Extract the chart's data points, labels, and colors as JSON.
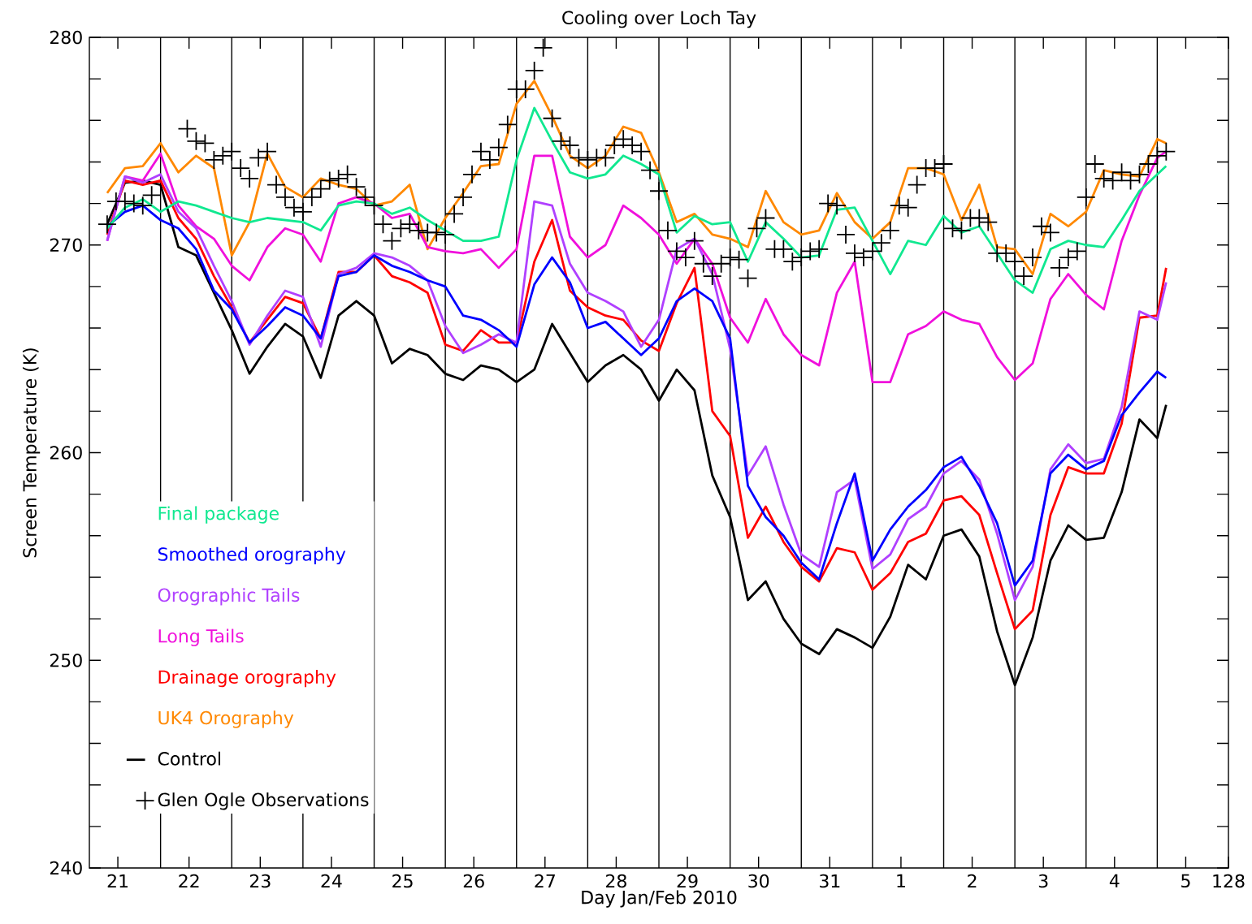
{
  "chart_data": {
    "type": "line",
    "title": "Cooling over Loch Tay",
    "xlabel": "Day Jan/Feb 2010",
    "ylabel": "Screen Temperature (K)",
    "xlim": [
      "2010-01-21T00:00",
      "2010-02-06T00:00"
    ],
    "ylim": [
      240,
      280
    ],
    "xticks": [
      {
        "value": "2010-01-21T09:36",
        "label": "21"
      },
      {
        "value": "2010-01-22T09:36",
        "label": "22"
      },
      {
        "value": "2010-01-23T09:36",
        "label": "23"
      },
      {
        "value": "2010-01-24T09:36",
        "label": "24"
      },
      {
        "value": "2010-01-25T09:36",
        "label": "25"
      },
      {
        "value": "2010-01-26T09:36",
        "label": "26"
      },
      {
        "value": "2010-01-27T09:36",
        "label": "27"
      },
      {
        "value": "2010-01-28T09:36",
        "label": "28"
      },
      {
        "value": "2010-01-29T09:36",
        "label": "29"
      },
      {
        "value": "2010-01-30T09:36",
        "label": "30"
      },
      {
        "value": "2010-01-31T09:36",
        "label": "31"
      },
      {
        "value": "2010-02-01T09:36",
        "label": "1"
      },
      {
        "value": "2010-02-02T09:36",
        "label": "2"
      },
      {
        "value": "2010-02-03T09:36",
        "label": "3"
      },
      {
        "value": "2010-02-04T09:36",
        "label": "4"
      },
      {
        "value": "2010-02-05T09:36",
        "label": "5"
      },
      {
        "value": "2010-02-06T00:00",
        "label": "128"
      }
    ],
    "yticks": [
      240,
      250,
      260,
      270,
      280
    ],
    "legend": "bottom left",
    "ref_lines": [
      {
        "axis": "x",
        "value": "2010-01-22T00:00",
        "color": "#000000"
      },
      {
        "axis": "x",
        "value": "2010-01-23T00:00",
        "color": "#000000"
      },
      {
        "axis": "x",
        "value": "2010-01-24T00:00",
        "color": "#000000"
      },
      {
        "axis": "x",
        "value": "2010-01-25T00:00",
        "color": "#000000"
      },
      {
        "axis": "x",
        "value": "2010-01-26T00:00",
        "color": "#000000"
      },
      {
        "axis": "x",
        "value": "2010-01-27T00:00",
        "color": "#000000"
      },
      {
        "axis": "x",
        "value": "2010-01-28T00:00",
        "color": "#000000"
      },
      {
        "axis": "x",
        "value": "2010-01-29T00:00",
        "color": "#000000"
      },
      {
        "axis": "x",
        "value": "2010-01-30T00:00",
        "color": "#000000"
      },
      {
        "axis": "x",
        "value": "2010-01-31T00:00",
        "color": "#000000"
      },
      {
        "axis": "x",
        "value": "2010-02-01T00:00",
        "color": "#000000"
      },
      {
        "axis": "x",
        "value": "2010-02-02T00:00",
        "color": "#000000"
      },
      {
        "axis": "x",
        "value": "2010-02-03T00:00",
        "color": "#000000"
      },
      {
        "axis": "x",
        "value": "2010-02-04T00:00",
        "color": "#000000"
      },
      {
        "axis": "x",
        "value": "2010-02-05T00:00",
        "color": "#000000"
      }
    ],
    "x": [
      "2010-01-21T06:00",
      "2010-01-21T12:00",
      "2010-01-21T18:00",
      "2010-01-22T00:00",
      "2010-01-22T06:00",
      "2010-01-22T12:00",
      "2010-01-22T18:00",
      "2010-01-23T00:00",
      "2010-01-23T06:00",
      "2010-01-23T12:00",
      "2010-01-23T18:00",
      "2010-01-24T00:00",
      "2010-01-24T06:00",
      "2010-01-24T12:00",
      "2010-01-24T18:00",
      "2010-01-25T00:00",
      "2010-01-25T06:00",
      "2010-01-25T12:00",
      "2010-01-25T18:00",
      "2010-01-26T00:00",
      "2010-01-26T06:00",
      "2010-01-26T12:00",
      "2010-01-26T18:00",
      "2010-01-27T00:00",
      "2010-01-27T06:00",
      "2010-01-27T12:00",
      "2010-01-27T18:00",
      "2010-01-28T00:00",
      "2010-01-28T06:00",
      "2010-01-28T12:00",
      "2010-01-28T18:00",
      "2010-01-29T00:00",
      "2010-01-29T06:00",
      "2010-01-29T12:00",
      "2010-01-29T18:00",
      "2010-01-30T00:00",
      "2010-01-30T06:00",
      "2010-01-30T12:00",
      "2010-01-30T18:00",
      "2010-01-31T00:00",
      "2010-01-31T06:00",
      "2010-01-31T12:00",
      "2010-01-31T18:00",
      "2010-02-01T00:00",
      "2010-02-01T06:00",
      "2010-02-01T12:00",
      "2010-02-01T18:00",
      "2010-02-02T00:00",
      "2010-02-02T06:00",
      "2010-02-02T12:00",
      "2010-02-02T18:00",
      "2010-02-03T00:00",
      "2010-02-03T06:00",
      "2010-02-03T12:00",
      "2010-02-03T18:00",
      "2010-02-04T00:00",
      "2010-02-04T06:00",
      "2010-02-04T12:00",
      "2010-02-04T18:00",
      "2010-02-05T00:00",
      "2010-02-05T03:00"
    ],
    "series": [
      {
        "name": "Final package",
        "color": "#10e890",
        "values": [
          270.8,
          271.8,
          272.2,
          271.6,
          272.1,
          271.9,
          271.6,
          271.3,
          271.1,
          271.3,
          271.2,
          271.1,
          270.7,
          271.9,
          272.1,
          272.0,
          271.5,
          271.8,
          271.2,
          270.7,
          270.2,
          270.2,
          270.4,
          274.1,
          276.6,
          275.0,
          273.5,
          273.2,
          273.4,
          274.3,
          273.9,
          273.4,
          270.6,
          271.4,
          271.0,
          271.1,
          269.2,
          271.1,
          270.3,
          269.4,
          269.5,
          271.7,
          271.8,
          270.2,
          268.6,
          270.2,
          270.0,
          271.4,
          270.6,
          270.9,
          269.6,
          268.3,
          267.7,
          269.8,
          270.2,
          270.0,
          269.9,
          271.2,
          272.6,
          273.4,
          273.8
        ]
      },
      {
        "name": "Smoothed orography",
        "color": "#0000ff",
        "values": [
          270.9,
          271.6,
          271.9,
          271.2,
          270.8,
          269.8,
          267.8,
          266.9,
          265.3,
          266.1,
          267.0,
          266.6,
          265.5,
          268.5,
          268.7,
          269.5,
          269.0,
          268.7,
          268.3,
          268.0,
          266.6,
          266.4,
          265.9,
          265.1,
          268.1,
          269.4,
          268.2,
          266.0,
          266.3,
          265.5,
          264.7,
          265.5,
          267.3,
          267.9,
          267.3,
          265.5,
          258.4,
          256.9,
          256.0,
          254.7,
          253.9,
          256.6,
          259.0,
          254.8,
          256.3,
          257.4,
          258.2,
          259.3,
          259.8,
          258.4,
          256.6,
          253.6,
          254.8,
          259.0,
          259.9,
          259.2,
          259.6,
          261.8,
          262.9,
          263.9,
          263.6
        ]
      },
      {
        "name": "Orographic Tails",
        "color": "#b040ff",
        "values": [
          270.2,
          273.3,
          273.0,
          273.4,
          271.6,
          270.8,
          269.0,
          267.3,
          265.2,
          266.6,
          267.8,
          267.5,
          265.1,
          268.6,
          268.9,
          269.6,
          269.4,
          269.0,
          268.3,
          266.1,
          264.8,
          265.2,
          265.7,
          265.3,
          272.1,
          271.9,
          269.1,
          267.7,
          267.3,
          266.8,
          265.1,
          266.4,
          269.8,
          270.3,
          268.6,
          265.0,
          258.9,
          260.3,
          257.5,
          255.1,
          254.5,
          258.1,
          258.7,
          254.4,
          255.1,
          256.8,
          257.4,
          259.0,
          259.6,
          258.7,
          256.1,
          252.9,
          254.5,
          259.2,
          260.4,
          259.5,
          259.7,
          262.2,
          266.8,
          266.4,
          268.2
        ]
      },
      {
        "name": "Long Tails",
        "color": "#f010dc",
        "values": [
          270.2,
          273.3,
          273.1,
          274.4,
          271.9,
          270.9,
          270.3,
          269.0,
          268.3,
          269.9,
          270.8,
          270.5,
          269.2,
          272.0,
          272.3,
          272.0,
          271.3,
          271.5,
          269.9,
          269.7,
          269.6,
          269.8,
          268.9,
          269.8,
          274.3,
          274.3,
          270.4,
          269.4,
          270.0,
          271.9,
          271.3,
          270.5,
          269.1,
          270.3,
          269.1,
          266.5,
          265.3,
          267.4,
          265.7,
          264.7,
          264.2,
          267.7,
          269.2,
          263.4,
          263.4,
          265.7,
          266.1,
          266.8,
          266.4,
          266.2,
          264.6,
          263.5,
          264.3,
          267.4,
          268.6,
          267.6,
          266.9,
          270.2,
          272.4,
          274.2,
          274.5
        ]
      },
      {
        "name": "Drainage orography",
        "color": "#ff0000",
        "values": [
          270.5,
          273.1,
          272.9,
          273.1,
          271.3,
          270.3,
          268.5,
          267.0,
          265.3,
          266.4,
          267.5,
          267.2,
          265.5,
          268.7,
          268.7,
          269.5,
          268.5,
          268.2,
          267.7,
          265.2,
          264.9,
          265.9,
          265.3,
          265.3,
          269.2,
          271.2,
          267.8,
          267.0,
          266.6,
          266.4,
          265.4,
          264.9,
          267.2,
          268.9,
          262.0,
          260.8,
          255.9,
          257.4,
          255.7,
          254.5,
          253.8,
          255.4,
          255.2,
          253.4,
          254.2,
          255.7,
          256.1,
          257.7,
          257.9,
          257.0,
          254.2,
          251.5,
          252.4,
          257.0,
          259.3,
          259.0,
          259.0,
          261.4,
          266.5,
          266.6,
          268.9
        ]
      },
      {
        "name": "UK4 Orography",
        "color": "#ff8800",
        "values": [
          272.5,
          273.7,
          273.8,
          274.9,
          273.5,
          274.3,
          273.7,
          269.5,
          271.1,
          274.4,
          272.8,
          272.3,
          273.2,
          272.9,
          272.7,
          271.9,
          272.1,
          272.9,
          269.8,
          271.3,
          272.5,
          273.8,
          273.9,
          276.8,
          277.9,
          276.2,
          274.3,
          273.7,
          274.3,
          275.7,
          275.4,
          273.5,
          271.1,
          271.5,
          270.5,
          270.3,
          269.9,
          272.6,
          271.1,
          270.5,
          270.7,
          272.5,
          271.1,
          270.3,
          271.1,
          273.7,
          273.7,
          273.4,
          271.2,
          272.9,
          269.9,
          269.8,
          268.6,
          271.5,
          270.9,
          271.6,
          273.6,
          273.4,
          273.3,
          275.1,
          274.9
        ]
      },
      {
        "name": "Control",
        "color": "#000000",
        "values": [
          271.0,
          273.0,
          273.1,
          272.9,
          269.9,
          269.5,
          267.7,
          265.9,
          263.8,
          265.1,
          266.2,
          265.6,
          263.6,
          266.6,
          267.3,
          266.6,
          264.3,
          265.0,
          264.7,
          263.8,
          263.5,
          264.2,
          264.0,
          263.4,
          264.0,
          266.2,
          264.8,
          263.4,
          264.2,
          264.7,
          264.0,
          262.5,
          264.0,
          263.0,
          258.9,
          256.9,
          252.9,
          253.8,
          252.0,
          250.8,
          250.3,
          251.5,
          251.1,
          250.6,
          252.1,
          254.6,
          253.9,
          256.0,
          256.3,
          255.0,
          251.4,
          248.8,
          251.1,
          254.8,
          256.5,
          255.8,
          255.9,
          258.1,
          261.6,
          260.7,
          262.3
        ]
      },
      {
        "name": "Glen Ogle Observations",
        "color": "#000000",
        "type": "scatter",
        "marker": "cross",
        "x": [
          "2010-01-21T06:00",
          "2010-01-21T09:00",
          "2010-01-21T12:00",
          "2010-01-21T15:00",
          "2010-01-21T18:00",
          "2010-01-21T21:00",
          "2010-01-22T09:00",
          "2010-01-22T12:00",
          "2010-01-22T15:00",
          "2010-01-22T18:00",
          "2010-01-22T21:00",
          "2010-01-23T00:00",
          "2010-01-23T03:00",
          "2010-01-23T06:00",
          "2010-01-23T09:00",
          "2010-01-23T12:00",
          "2010-01-23T15:00",
          "2010-01-23T18:00",
          "2010-01-23T21:00",
          "2010-01-24T00:00",
          "2010-01-24T03:00",
          "2010-01-24T06:00",
          "2010-01-24T09:00",
          "2010-01-24T12:00",
          "2010-01-24T15:00",
          "2010-01-24T18:00",
          "2010-01-24T21:00",
          "2010-01-25T00:00",
          "2010-01-25T03:00",
          "2010-01-25T06:00",
          "2010-01-25T09:00",
          "2010-01-25T12:00",
          "2010-01-25T15:00",
          "2010-01-25T18:00",
          "2010-01-25T21:00",
          "2010-01-26T00:00",
          "2010-01-26T03:00",
          "2010-01-26T06:00",
          "2010-01-26T09:00",
          "2010-01-26T12:00",
          "2010-01-26T15:00",
          "2010-01-26T18:00",
          "2010-01-26T21:00",
          "2010-01-27T00:00",
          "2010-01-27T03:00",
          "2010-01-27T06:00",
          "2010-01-27T09:00",
          "2010-01-27T12:00",
          "2010-01-27T15:00",
          "2010-01-27T18:00",
          "2010-01-27T21:00",
          "2010-01-28T00:00",
          "2010-01-28T03:00",
          "2010-01-28T06:00",
          "2010-01-28T09:00",
          "2010-01-28T12:00",
          "2010-01-28T15:00",
          "2010-01-28T18:00",
          "2010-01-28T21:00",
          "2010-01-29T00:00",
          "2010-01-29T03:00",
          "2010-01-29T06:00",
          "2010-01-29T09:00",
          "2010-01-29T12:00",
          "2010-01-29T15:00",
          "2010-01-29T18:00",
          "2010-01-29T21:00",
          "2010-01-30T00:00",
          "2010-01-30T03:00",
          "2010-01-30T06:00",
          "2010-01-30T09:00",
          "2010-01-30T12:00",
          "2010-01-30T15:00",
          "2010-01-30T18:00",
          "2010-01-30T21:00",
          "2010-01-31T00:00",
          "2010-01-31T03:00",
          "2010-01-31T06:00",
          "2010-01-31T09:00",
          "2010-01-31T12:00",
          "2010-01-31T15:00",
          "2010-01-31T18:00",
          "2010-01-31T21:00",
          "2010-02-01T00:00",
          "2010-02-01T03:00",
          "2010-02-01T06:00",
          "2010-02-01T09:00",
          "2010-02-01T12:00",
          "2010-02-01T15:00",
          "2010-02-01T18:00",
          "2010-02-01T21:00",
          "2010-02-02T00:00",
          "2010-02-02T03:00",
          "2010-02-02T06:00",
          "2010-02-02T09:00",
          "2010-02-02T12:00",
          "2010-02-02T15:00",
          "2010-02-02T18:00",
          "2010-02-02T21:00",
          "2010-02-03T00:00",
          "2010-02-03T03:00",
          "2010-02-03T06:00",
          "2010-02-03T09:00",
          "2010-02-03T12:00",
          "2010-02-03T15:00",
          "2010-02-03T18:00",
          "2010-02-03T21:00",
          "2010-02-04T00:00",
          "2010-02-04T03:00",
          "2010-02-04T06:00",
          "2010-02-04T09:00",
          "2010-02-04T12:00",
          "2010-02-04T15:00",
          "2010-02-04T18:00",
          "2010-02-04T21:00",
          "2010-02-05T00:00",
          "2010-02-05T03:00"
        ],
        "values": [
          271.0,
          272.1,
          272.1,
          272.0,
          271.9,
          272.4,
          275.6,
          275.0,
          274.9,
          274.1,
          274.3,
          274.5,
          273.7,
          273.2,
          274.2,
          274.5,
          272.9,
          272.3,
          271.8,
          271.6,
          272.3,
          272.7,
          273.1,
          273.2,
          273.4,
          272.8,
          272.3,
          271.9,
          271.0,
          270.2,
          270.8,
          271.0,
          270.7,
          270.6,
          270.6,
          270.5,
          271.5,
          272.3,
          273.4,
          274.5,
          274.1,
          274.7,
          275.8,
          277.5,
          277.5,
          278.4,
          279.5,
          276.1,
          275.0,
          274.8,
          274.2,
          274.1,
          274.2,
          274.2,
          274.8,
          275.1,
          274.8,
          274.5,
          273.6,
          272.6,
          270.7,
          269.7,
          269.4,
          270.2,
          269.1,
          268.5,
          269.1,
          269.4,
          269.3,
          268.4,
          270.8,
          271.3,
          269.8,
          269.8,
          269.2,
          269.4,
          269.7,
          269.8,
          272.0,
          271.9,
          270.5,
          269.6,
          269.4,
          269.7,
          270.1,
          270.7,
          271.9,
          271.8,
          272.9,
          273.7,
          273.7,
          273.9,
          270.8,
          270.7,
          271.3,
          271.3,
          271.1,
          269.6,
          269.6,
          269.2,
          268.5,
          269.4,
          270.9,
          270.6,
          268.9,
          269.4,
          269.7,
          272.3,
          273.9,
          273.2,
          273.1,
          273.5,
          273.1,
          273.4,
          273.9,
          274.3,
          274.5
        ]
      }
    ]
  }
}
